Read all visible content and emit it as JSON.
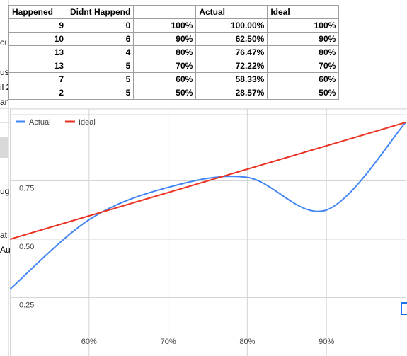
{
  "sheet": {
    "headers": [
      "Happened",
      "Didnt Happend",
      "",
      "Actual",
      "Ideal"
    ],
    "rows": [
      [
        "9",
        "0",
        "100%",
        "100.00%",
        "100%"
      ],
      [
        "10",
        "6",
        "90%",
        "62.50%",
        "90%"
      ],
      [
        "13",
        "4",
        "80%",
        "76.47%",
        "80%"
      ],
      [
        "13",
        "5",
        "70%",
        "72.22%",
        "70%"
      ],
      [
        "7",
        "5",
        "60%",
        "58.33%",
        "60%"
      ],
      [
        "2",
        "5",
        "50%",
        "28.57%",
        "50%"
      ]
    ],
    "left_edge_fragments": [
      "ou",
      "us",
      "il 2",
      "an",
      "ug",
      "at",
      "Au"
    ]
  },
  "chart_data": {
    "type": "line",
    "x": [
      0.5,
      0.6,
      0.7,
      0.8,
      0.9,
      1.0
    ],
    "series": [
      {
        "name": "Actual",
        "color": "#4285f4",
        "values": [
          0.2857,
          0.5833,
          0.7222,
          0.7647,
          0.625,
          1.0
        ]
      },
      {
        "name": "Ideal",
        "color": "#ea3323",
        "values": [
          0.5,
          0.6,
          0.7,
          0.8,
          0.9,
          1.0
        ]
      }
    ],
    "x_ticks": [
      "60%",
      "70%",
      "80%",
      "90%"
    ],
    "y_ticks": [
      "0.25",
      "0.50",
      "0.75"
    ],
    "xlim": [
      0.5,
      1.0
    ],
    "ylim": [
      0.0,
      1.0
    ],
    "legend": "top-left",
    "grid": true
  }
}
